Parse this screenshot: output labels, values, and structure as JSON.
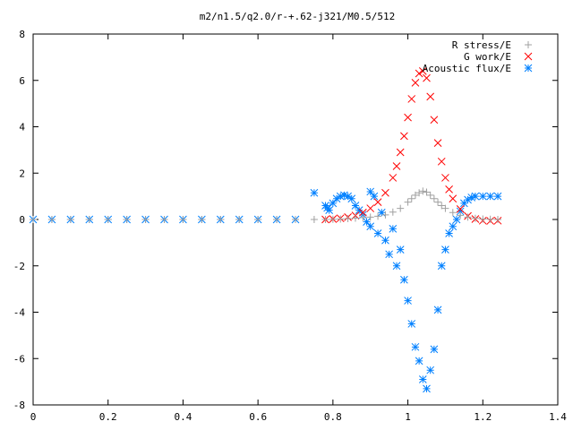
{
  "chart_data": {
    "type": "scatter",
    "title": "m2/n1.5/q2.0/r-+.62-j321/M0.5/512",
    "xlabel": "",
    "ylabel": "",
    "xlim": [
      0,
      1.4
    ],
    "ylim": [
      -8,
      8
    ],
    "x_ticks": [
      0,
      0.2,
      0.4,
      0.6,
      0.8,
      1,
      1.2,
      1.4
    ],
    "x_tick_labels": [
      "0",
      "0.2",
      "0.4",
      "0.6",
      "0.8",
      "1",
      "1.2",
      "1.4"
    ],
    "y_ticks": [
      -8,
      -6,
      -4,
      -2,
      0,
      2,
      4,
      6,
      8
    ],
    "y_tick_labels": [
      "-8",
      "-6",
      "-4",
      "-2",
      "0",
      "2",
      "4",
      "6",
      "8"
    ],
    "grid": false,
    "legend_position": "top-right",
    "series": [
      {
        "name": "R stress/E",
        "marker": "plus",
        "color": "#a0a0a0",
        "x": [
          0,
          0.05,
          0.1,
          0.15,
          0.2,
          0.25,
          0.3,
          0.35,
          0.4,
          0.45,
          0.5,
          0.55,
          0.6,
          0.65,
          0.7,
          0.75,
          0.78,
          0.8,
          0.82,
          0.84,
          0.86,
          0.88,
          0.9,
          0.92,
          0.94,
          0.96,
          0.98,
          1.0,
          1.01,
          1.02,
          1.03,
          1.04,
          1.05,
          1.06,
          1.07,
          1.08,
          1.09,
          1.1,
          1.12,
          1.14,
          1.16,
          1.18,
          1.2,
          1.22,
          1.24
        ],
        "y": [
          0,
          0,
          0,
          0,
          0,
          0,
          0,
          0,
          0,
          0,
          0,
          0,
          0,
          0,
          0,
          0,
          0,
          0.01,
          0.02,
          0.04,
          0.06,
          0.08,
          0.1,
          0.14,
          0.2,
          0.32,
          0.48,
          0.75,
          0.9,
          1.05,
          1.15,
          1.22,
          1.18,
          1.05,
          0.9,
          0.75,
          0.6,
          0.48,
          0.3,
          0.18,
          0.1,
          0.05,
          0.02,
          0.01,
          0.0
        ]
      },
      {
        "name": "G work/E",
        "marker": "cross",
        "color": "#ff0000",
        "x": [
          0.78,
          0.8,
          0.82,
          0.84,
          0.86,
          0.88,
          0.9,
          0.92,
          0.94,
          0.96,
          0.97,
          0.98,
          0.99,
          1.0,
          1.01,
          1.02,
          1.03,
          1.04,
          1.05,
          1.06,
          1.07,
          1.08,
          1.09,
          1.1,
          1.11,
          1.12,
          1.14,
          1.16,
          1.18,
          1.2,
          1.22,
          1.24
        ],
        "y": [
          0.0,
          0.02,
          0.05,
          0.1,
          0.17,
          0.3,
          0.48,
          0.75,
          1.15,
          1.8,
          2.3,
          2.9,
          3.6,
          4.4,
          5.2,
          5.9,
          6.3,
          6.4,
          6.1,
          5.3,
          4.3,
          3.3,
          2.5,
          1.8,
          1.3,
          0.9,
          0.45,
          0.15,
          0.02,
          -0.05,
          -0.06,
          -0.05
        ]
      },
      {
        "name": "Acoustic flux/E",
        "marker": "star",
        "color": "#0080ff",
        "x": [
          0,
          0.05,
          0.1,
          0.15,
          0.2,
          0.25,
          0.3,
          0.35,
          0.4,
          0.45,
          0.5,
          0.55,
          0.6,
          0.65,
          0.7,
          0.75,
          0.78,
          0.785,
          0.79,
          0.8,
          0.81,
          0.82,
          0.83,
          0.84,
          0.85,
          0.86,
          0.87,
          0.88,
          0.89,
          0.9,
          0.9,
          0.91,
          0.92,
          0.93,
          0.94,
          0.95,
          0.96,
          0.97,
          0.98,
          0.99,
          1.0,
          1.01,
          1.02,
          1.03,
          1.04,
          1.05,
          1.06,
          1.07,
          1.08,
          1.09,
          1.1,
          1.11,
          1.12,
          1.13,
          1.14,
          1.15,
          1.16,
          1.17,
          1.18,
          1.2,
          1.22,
          1.24
        ],
        "y": [
          0,
          0,
          0,
          0,
          0,
          0,
          0,
          0,
          0,
          0,
          0,
          0,
          0,
          0,
          0,
          1.15,
          0.6,
          0.5,
          0.4,
          0.7,
          0.9,
          1.0,
          1.05,
          1.0,
          0.9,
          0.6,
          0.4,
          0.2,
          -0.1,
          1.2,
          -0.3,
          1.0,
          -0.6,
          0.3,
          -0.9,
          -1.5,
          -0.4,
          -2.0,
          -1.3,
          -2.6,
          -3.5,
          -4.5,
          -5.5,
          -6.1,
          -6.9,
          -7.3,
          -6.5,
          -5.6,
          -3.9,
          -2.0,
          -1.3,
          -0.6,
          -0.3,
          0.0,
          0.35,
          0.7,
          0.85,
          0.95,
          1.0,
          1.0,
          1.0,
          1.0
        ]
      }
    ]
  }
}
